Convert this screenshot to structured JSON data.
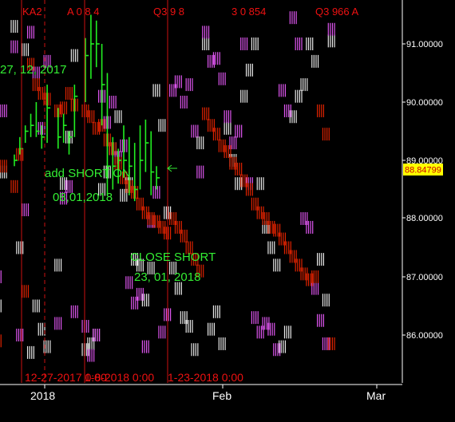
{
  "colors": {
    "background": "#000000",
    "price_bars": "#22ee22",
    "magenta_ticks": "#dd55ee",
    "white_ticks": "#e8e8e8",
    "red_ticks": "#dd2200",
    "vertical_lines": "#cc1111",
    "current_price_box": "#ffff00"
  },
  "header": {
    "fragments": [
      "KA2",
      "A 0 8 4",
      "Q3 9 8",
      "3 0 854",
      "Q3 966 A"
    ]
  },
  "current_price": "88.84799",
  "annotations": {
    "date_top": "27, 12, 2017",
    "add_short_label": "add SHORT ON",
    "add_short_date": "08,01,2018",
    "close_short_label": "CLOSE SHORT",
    "close_short_date": "23, 01, 2018"
  },
  "date_markers": [
    "12-27-2017 0:00",
    "1-8-2018 0:00",
    "1-23-2018 0:00"
  ],
  "chart_data": {
    "type": "line",
    "xlabel": "",
    "ylabel": "",
    "x_ticks": [
      "2018",
      "Feb",
      "Mar"
    ],
    "y_ticks": [
      "91.00000",
      "90.00000",
      "89.00000",
      "88.00000",
      "87.00000",
      "86.00000"
    ],
    "ylim": [
      85.55,
      91.55
    ],
    "grid": false,
    "price_series": {
      "name": "",
      "x": [
        "12-14",
        "12-15",
        "12-18",
        "12-19",
        "12-20",
        "12-21",
        "12-22",
        "12-26",
        "12-27",
        "12-28",
        "12-29",
        "01-02",
        "01-03",
        "01-04",
        "01-05",
        "01-08",
        "01-09",
        "01-10",
        "01-11",
        "01-12",
        "01-15",
        "01-16",
        "01-17",
        "01-18",
        "01-19"
      ],
      "high": [
        89.1,
        89.4,
        89.6,
        89.8,
        90.0,
        89.6,
        90.3,
        89.9,
        89.8,
        89.5,
        90.3,
        91.1,
        91.5,
        91.4,
        91.0,
        90.5,
        89.4,
        89.2,
        89.6,
        89.4,
        89.3,
        89.6,
        89.7,
        89.5,
        88.9
      ],
      "low": [
        88.9,
        89.1,
        89.3,
        89.4,
        89.4,
        89.2,
        89.3,
        89.2,
        89.3,
        89.1,
        89.4,
        90.0,
        90.4,
        90.6,
        89.6,
        88.4,
        88.5,
        88.6,
        88.7,
        88.4,
        88.3,
        88.5,
        88.8,
        88.4,
        88.5
      ],
      "close": [
        89.0,
        89.2,
        89.5,
        89.6,
        89.5,
        89.4,
        89.9,
        89.4,
        89.6,
        89.4,
        90.1,
        90.8,
        91.0,
        91.0,
        90.3,
        88.9,
        88.9,
        89.0,
        89.0,
        88.9,
        88.5,
        89.0,
        89.3,
        88.8,
        88.7
      ]
    },
    "projection_bands": {
      "red_points": [
        [
          "12-08",
          86.05
        ],
        [
          "12-11",
          85.9
        ],
        [
          "12-12",
          88.9
        ],
        [
          "12-14",
          88.55
        ],
        [
          "12-15",
          89.1
        ],
        [
          "12-18",
          86.75
        ],
        [
          "12-19",
          90.65
        ],
        [
          "12-20",
          90.3
        ],
        [
          "12-21",
          90.15
        ],
        [
          "12-22",
          90.05
        ],
        [
          "12-26",
          89.85
        ],
        [
          "12-27",
          89.9
        ],
        [
          "12-28",
          90.15
        ],
        [
          "12-29",
          89.95
        ],
        [
          "01-02",
          89.85
        ],
        [
          "01-03",
          89.75
        ],
        [
          "01-04",
          89.55
        ],
        [
          "01-05",
          89.6
        ],
        [
          "01-08",
          89.35
        ],
        [
          "01-09",
          89.2
        ],
        [
          "01-10",
          88.95
        ],
        [
          "01-11",
          88.7
        ],
        [
          "01-12",
          88.55
        ],
        [
          "01-15",
          88.45
        ],
        [
          "01-16",
          88.25
        ],
        [
          "01-17",
          88.1
        ],
        [
          "01-18",
          88.0
        ],
        [
          "01-19",
          87.95
        ],
        [
          "01-22",
          87.85
        ],
        [
          "01-23",
          87.75
        ],
        [
          "01-24",
          88.0
        ],
        [
          "01-25",
          87.85
        ],
        [
          "01-26",
          87.7
        ],
        [
          "01-29",
          87.5
        ],
        [
          "01-30",
          87.3
        ],
        [
          "01-31",
          87.1
        ],
        [
          "02-01",
          89.8
        ],
        [
          "02-02",
          89.6
        ],
        [
          "02-05",
          89.45
        ],
        [
          "02-06",
          89.25
        ],
        [
          "02-07",
          89.15
        ],
        [
          "02-08",
          88.95
        ],
        [
          "02-09",
          88.85
        ],
        [
          "02-12",
          88.65
        ],
        [
          "02-13",
          88.5
        ],
        [
          "02-14",
          88.25
        ],
        [
          "02-15",
          88.1
        ],
        [
          "02-16",
          88.0
        ],
        [
          "02-19",
          87.85
        ],
        [
          "02-20",
          87.8
        ],
        [
          "02-21",
          87.65
        ],
        [
          "02-22",
          87.5
        ],
        [
          "02-23",
          87.35
        ],
        [
          "02-26",
          87.2
        ],
        [
          "02-27",
          87.05
        ],
        [
          "02-28",
          86.95
        ],
        [
          "03-01",
          87.0
        ],
        [
          "03-02",
          89.85
        ],
        [
          "03-05",
          89.45
        ],
        [
          "03-06",
          85.85
        ]
      ],
      "magenta_points": [
        [
          "12-08",
          91.6
        ],
        [
          "12-11",
          87.0
        ],
        [
          "12-12",
          89.85
        ],
        [
          "12-14",
          90.95
        ],
        [
          "12-15",
          86.0
        ],
        [
          "12-18",
          88.15
        ],
        [
          "12-19",
          91.2
        ],
        [
          "12-20",
          90.5
        ],
        [
          "12-21",
          89.55
        ],
        [
          "12-22",
          90.7
        ],
        [
          "12-26",
          86.2
        ],
        [
          "12-27",
          88.35
        ],
        [
          "12-28",
          88.55
        ],
        [
          "12-29",
          86.4
        ],
        [
          "01-02",
          86.15
        ],
        [
          "01-03",
          85.65
        ],
        [
          "01-04",
          86.0
        ],
        [
          "01-05",
          90.1
        ],
        [
          "01-08",
          89.65
        ],
        [
          "01-09",
          90.0
        ],
        [
          "01-10",
          89.05
        ],
        [
          "01-11",
          89.25
        ],
        [
          "01-12",
          86.9
        ],
        [
          "01-15",
          86.55
        ],
        [
          "01-16",
          86.7
        ],
        [
          "01-17",
          85.8
        ],
        [
          "01-18",
          87.95
        ],
        [
          "01-19",
          88.45
        ],
        [
          "01-22",
          86.05
        ],
        [
          "01-23",
          86.35
        ],
        [
          "01-24",
          90.2
        ],
        [
          "01-25",
          90.35
        ],
        [
          "01-26",
          90.0
        ],
        [
          "01-29",
          90.3
        ],
        [
          "01-30",
          89.5
        ],
        [
          "01-31",
          88.8
        ],
        [
          "02-01",
          91.2
        ],
        [
          "02-02",
          90.7
        ],
        [
          "02-05",
          90.75
        ],
        [
          "02-06",
          90.4
        ],
        [
          "02-07",
          89.75
        ],
        [
          "02-08",
          89.3
        ],
        [
          "02-09",
          89.5
        ],
        [
          "02-12",
          91.0
        ],
        [
          "02-13",
          88.6
        ],
        [
          "02-14",
          86.3
        ],
        [
          "02-15",
          86.05
        ],
        [
          "02-16",
          86.2
        ],
        [
          "02-19",
          86.1
        ],
        [
          "02-20",
          85.75
        ],
        [
          "02-21",
          90.2
        ],
        [
          "02-22",
          89.85
        ],
        [
          "02-23",
          91.45
        ],
        [
          "02-26",
          91.0
        ],
        [
          "02-27",
          88.0
        ],
        [
          "02-28",
          87.85
        ],
        [
          "03-01",
          86.8
        ],
        [
          "03-02",
          86.25
        ],
        [
          "03-05",
          85.85
        ],
        [
          "03-06",
          91.25
        ]
      ],
      "white_points": [
        [
          "12-08",
          91.0
        ],
        [
          "12-11",
          86.5
        ],
        [
          "12-12",
          88.8
        ],
        [
          "12-14",
          91.3
        ],
        [
          "12-15",
          87.5
        ],
        [
          "12-18",
          90.9
        ],
        [
          "12-19",
          85.7
        ],
        [
          "12-20",
          86.5
        ],
        [
          "12-21",
          86.1
        ],
        [
          "12-22",
          85.8
        ],
        [
          "12-26",
          87.2
        ],
        [
          "12-27",
          88.6
        ],
        [
          "12-28",
          89.4
        ],
        [
          "12-29",
          90.8
        ],
        [
          "01-02",
          85.75
        ],
        [
          "01-03",
          85.85
        ],
        [
          "01-04",
          86.0
        ],
        [
          "01-05",
          88.5
        ],
        [
          "01-08",
          88.8
        ],
        [
          "01-09",
          89.2
        ],
        [
          "01-10",
          89.75
        ],
        [
          "01-11",
          88.4
        ],
        [
          "01-12",
          88.6
        ],
        [
          "01-15",
          87.3
        ],
        [
          "01-16",
          87.2
        ],
        [
          "01-17",
          86.6
        ],
        [
          "01-18",
          87.15
        ],
        [
          "01-19",
          90.2
        ],
        [
          "01-22",
          89.6
        ],
        [
          "01-23",
          88.1
        ],
        [
          "01-24",
          87.15
        ],
        [
          "01-25",
          86.8
        ],
        [
          "01-26",
          86.3
        ],
        [
          "01-29",
          86.15
        ],
        [
          "01-30",
          85.75
        ],
        [
          "01-31",
          89.3
        ],
        [
          "02-01",
          91.0
        ],
        [
          "02-02",
          86.1
        ],
        [
          "02-05",
          86.4
        ],
        [
          "02-06",
          85.85
        ],
        [
          "02-07",
          89.55
        ],
        [
          "02-08",
          89.0
        ],
        [
          "02-09",
          88.6
        ],
        [
          "02-12",
          90.1
        ],
        [
          "02-13",
          90.55
        ],
        [
          "02-14",
          91.0
        ],
        [
          "02-15",
          88.6
        ],
        [
          "02-16",
          87.85
        ],
        [
          "02-19",
          87.5
        ],
        [
          "02-20",
          87.2
        ],
        [
          "02-21",
          85.8
        ],
        [
          "02-22",
          86.05
        ],
        [
          "02-23",
          89.75
        ],
        [
          "02-26",
          90.1
        ],
        [
          "02-27",
          90.3
        ],
        [
          "02-28",
          91.0
        ],
        [
          "03-01",
          90.7
        ],
        [
          "03-02",
          87.3
        ],
        [
          "03-05",
          86.6
        ],
        [
          "03-06",
          91.05
        ]
      ]
    }
  }
}
